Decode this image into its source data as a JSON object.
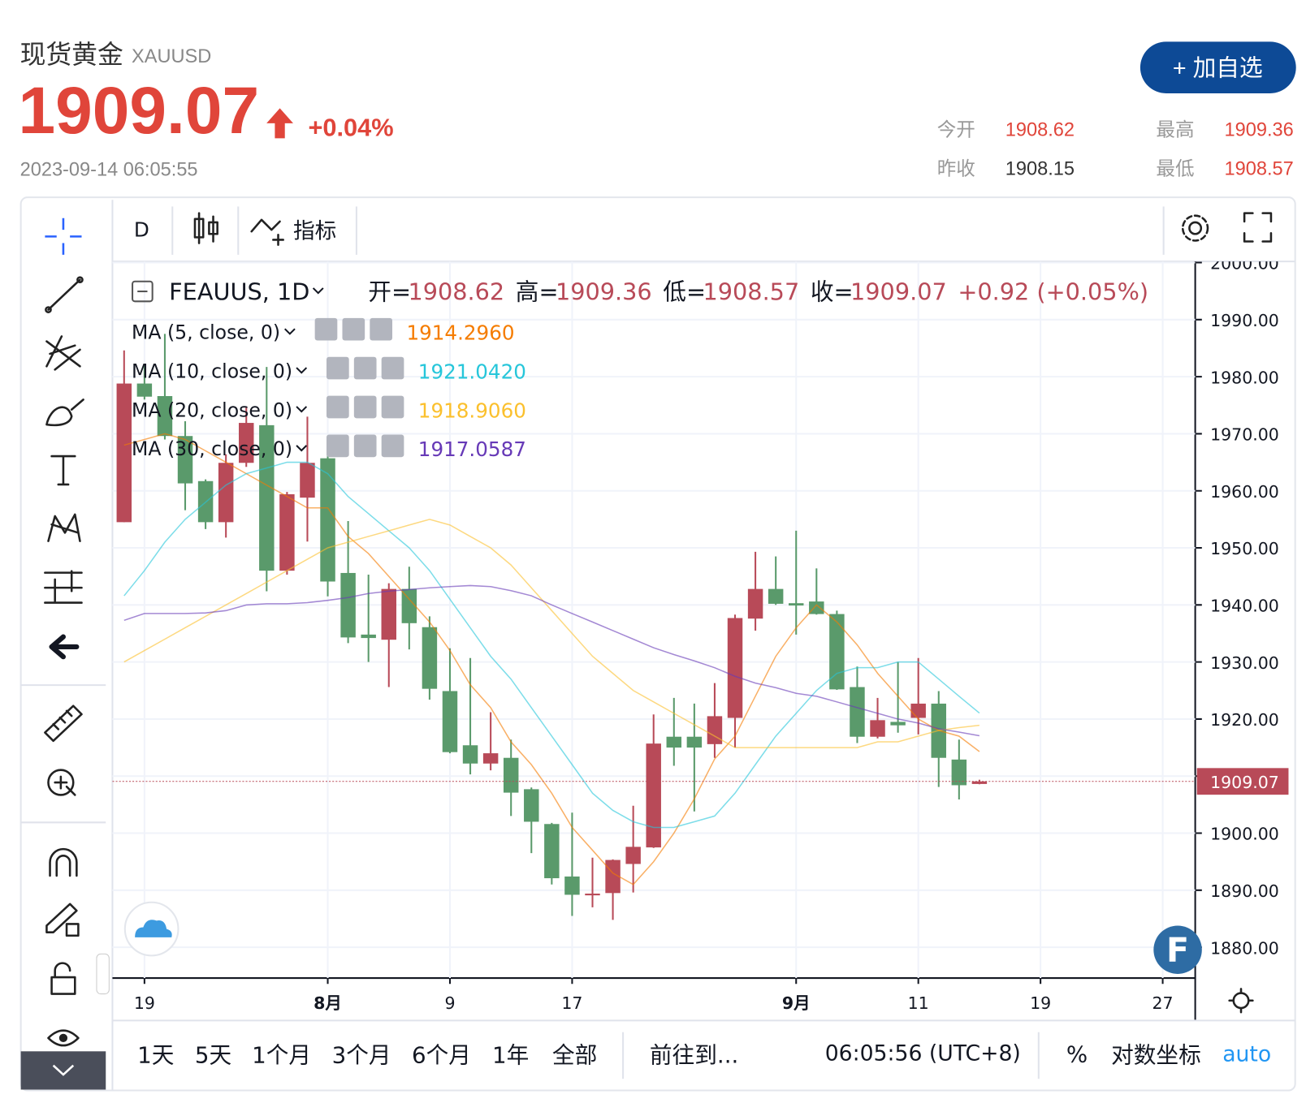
{
  "header": {
    "name": "现货黄金",
    "symbol": "XAUUSD",
    "price": 1909.07,
    "change": "+0.04%",
    "timestamp": "2023-09-14 06:05:55",
    "button": "+ 加自选",
    "stats": [
      {
        "label": "今开",
        "value": 1908.62
      },
      {
        "label": "最高",
        "value": 1909.36
      },
      {
        "label": "昨收",
        "value": 1908.15
      },
      {
        "label": "最低",
        "value": 1908.57
      }
    ]
  },
  "toolbar": {
    "interval": "D",
    "indicators": "指标"
  },
  "chart_data": {
    "type": "candlestick",
    "symbol_label": "FEAUUS, 1D",
    "legend_labels": {
      "open": "开=",
      "high": "高=",
      "low": "低=",
      "close": "收="
    },
    "change_label": "+0.92 (+0.05%)",
    "up_color": "#b84a58",
    "down_color": "#5a9a6b",
    "watermark_logo": "F",
    "categories": [
      null,
      "19",
      null,
      null,
      null,
      null,
      null,
      null,
      null,
      null,
      "8月",
      null,
      null,
      null,
      null,
      null,
      "9",
      null,
      null,
      null,
      null,
      null,
      "17",
      null,
      null,
      null,
      null,
      null,
      null,
      null,
      null,
      null,
      null,
      "9月",
      null,
      null,
      null,
      null,
      null,
      "11",
      null,
      null,
      null,
      null,
      null,
      "19",
      null,
      null,
      null,
      null,
      null,
      "27"
    ],
    "open": [
      1954.5,
      1978.8,
      1976.6,
      1969.6,
      1961.7,
      1954.5,
      1964.9,
      1971.5,
      1946.0,
      1958.8,
      1965.7,
      1945.6,
      1934.8,
      1933.9,
      1942.8,
      1936.1,
      1924.9,
      1915.4,
      1912.2,
      1913.2,
      1907.7,
      1901.6,
      1892.4,
      1889.1,
      1889.5,
      1894.6,
      1897.5,
      1916.9,
      1916.9,
      1915.6,
      1920.2,
      1937.6,
      1942.8,
      1940.3,
      1940.6,
      1938.4,
      1925.6,
      1916.9,
      1919.5,
      1920.2,
      1922.7,
      1912.9,
      1908.62,
      null,
      null,
      null,
      null,
      null,
      null,
      null,
      null,
      null
    ],
    "high": [
      1984.6,
      1982.0,
      1987.5,
      1972.2,
      1962.0,
      1966.4,
      1974.8,
      1981.7,
      1959.8,
      1973.0,
      1966.4,
      1954.7,
      1945.3,
      1943.8,
      1946.7,
      1938.0,
      1932.4,
      1930.7,
      1921.2,
      1916.4,
      1908.0,
      1901.8,
      1903.6,
      1895.7,
      1895.4,
      1904.8,
      1920.8,
      1923.7,
      1922.7,
      1926.3,
      1938.3,
      1949.3,
      1948.5,
      1953.0,
      1946.4,
      1939.0,
      1929.2,
      1923.7,
      1930.0,
      1930.7,
      1924.9,
      1916.4,
      1909.36,
      null,
      null,
      null,
      null,
      null,
      null,
      null,
      null,
      null
    ],
    "low": [
      1954.5,
      1976.0,
      1969.0,
      1956.6,
      1953.3,
      1951.8,
      1964.2,
      1942.4,
      1945.3,
      1951.1,
      1941.5,
      1933.3,
      1930.0,
      1925.6,
      1932.2,
      1923.4,
      1914.0,
      1910.3,
      1911.0,
      1903.0,
      1896.5,
      1891.0,
      1885.5,
      1887.0,
      1884.8,
      1889.6,
      1897.4,
      1911.8,
      1903.8,
      1913.2,
      1915.0,
      1935.5,
      1940.0,
      1934.8,
      1938.3,
      1925.1,
      1915.8,
      1916.6,
      1917.6,
      1917.3,
      1908.1,
      1905.9,
      1908.57,
      null,
      null,
      null,
      null,
      null,
      null,
      null,
      null,
      null
    ],
    "close": [
      1978.8,
      1976.5,
      1969.6,
      1961.3,
      1954.5,
      1964.9,
      1971.9,
      1946.0,
      1959.4,
      1964.9,
      1944.1,
      1934.3,
      1934.2,
      1942.8,
      1936.8,
      1925.3,
      1914.2,
      1912.2,
      1914.0,
      1907.1,
      1902.0,
      1892.1,
      1889.2,
      1889.4,
      1895.3,
      1897.6,
      1915.7,
      1915.0,
      1915.0,
      1920.5,
      1937.7,
      1942.8,
      1940.2,
      1939.9,
      1938.4,
      1925.2,
      1916.9,
      1919.8,
      1918.9,
      1922.7,
      1913.2,
      1908.4,
      1909.07,
      null,
      null,
      null,
      null,
      null,
      null,
      null,
      null,
      null
    ],
    "series": [
      {
        "name": "MA (5, close, 0)",
        "color": "#f57c00",
        "legend_value": "1914.2960",
        "values": [
          1968,
          1969,
          1970,
          1969,
          1967,
          1965,
          1963,
          1961,
          1959,
          1957,
          1957,
          1952,
          1949,
          1945,
          1941,
          1937,
          1932,
          1926,
          1922,
          1916,
          1912,
          1907,
          1901,
          1897,
          1893,
          1891,
          1895,
          1900,
          1906,
          1913,
          1917,
          1924,
          1931,
          1936,
          1940,
          1937,
          1933,
          1928,
          1924,
          1920,
          1918,
          1917,
          1914.296,
          null,
          null,
          null,
          null,
          null,
          null,
          null,
          null,
          null
        ]
      },
      {
        "name": "MA (10, close, 0)",
        "color": "#26c6da",
        "legend_value": "1921.0420",
        "values": [
          1941.6,
          1946,
          1951,
          1955,
          1958,
          1961,
          1963,
          1964,
          1965,
          1965,
          1963,
          1959,
          1956,
          1953,
          1950,
          1946,
          1941,
          1936,
          1931,
          1927,
          1922,
          1917,
          1912,
          1907,
          1904,
          1902,
          1901,
          1901,
          1902,
          1903,
          1907,
          1912,
          1917,
          1921,
          1925,
          1928,
          1929,
          1929,
          1930,
          1930,
          1927,
          1924,
          1921.042,
          null,
          null,
          null,
          null,
          null,
          null,
          null,
          null,
          null
        ]
      },
      {
        "name": "MA (20, close, 0)",
        "color": "#fbc02d",
        "legend_value": "1918.9060",
        "values": [
          1930,
          1932,
          1934,
          1936,
          1938,
          1940,
          1942,
          1944,
          1946,
          1948,
          1950,
          1951,
          1952,
          1953,
          1954,
          1955,
          1954,
          1952,
          1950,
          1947,
          1943,
          1939,
          1935,
          1931,
          1928,
          1925,
          1923,
          1921,
          1919,
          1917,
          1915,
          1915,
          1915,
          1915,
          1915,
          1915,
          1915,
          1916,
          1916,
          1917,
          1918,
          1918.5,
          1918.906,
          null,
          null,
          null,
          null,
          null,
          null,
          null,
          null,
          null
        ]
      },
      {
        "name": "MA (30, close, 0)",
        "color": "#673ab7",
        "legend_value": "1917.0587",
        "values": [
          1937.3,
          1938.5,
          1938.5,
          1938.5,
          1938.6,
          1939,
          1940,
          1940.2,
          1940.2,
          1940.4,
          1940.8,
          1941.3,
          1942,
          1942.4,
          1942.7,
          1943,
          1943.2,
          1943.4,
          1943.2,
          1942.5,
          1941.6,
          1940,
          1938.5,
          1937,
          1935.5,
          1934,
          1932.5,
          1931.3,
          1930.2,
          1929,
          1927.5,
          1926.3,
          1925.5,
          1924.5,
          1924,
          1923,
          1922,
          1921,
          1920,
          1919.3,
          1918.3,
          1917.7,
          1917.0587,
          null,
          null,
          null,
          null,
          null,
          null,
          null,
          null,
          null
        ]
      }
    ],
    "ylim": [
      1874.6,
      2000.2
    ],
    "yticks": [
      {
        "value": 1880,
        "label": "1880.00"
      },
      {
        "value": 1890,
        "label": "1890.00"
      },
      {
        "value": 1900,
        "label": "1900.00"
      },
      {
        "value": 1910,
        "label": "1910.00"
      },
      {
        "value": 1920,
        "label": "1920.00"
      },
      {
        "value": 1930,
        "label": "1930.00"
      },
      {
        "value": 1940,
        "label": "1940.00"
      },
      {
        "value": 1950,
        "label": "1950.00"
      },
      {
        "value": 1960,
        "label": "1960.00"
      },
      {
        "value": 1970,
        "label": "1970.00"
      },
      {
        "value": 1980,
        "label": "1980.00"
      },
      {
        "value": 1990,
        "label": "1990.00"
      },
      {
        "value": 2000,
        "label": "2000.00"
      }
    ],
    "grid": true
  },
  "range_bar": {
    "buttons": [
      "1天",
      "5天",
      "1个月",
      "3个月",
      "6个月",
      "1年",
      "全部"
    ],
    "goto": "前往到...",
    "time": "06:05:56 (UTC+8)",
    "percent": "%",
    "log": "对数坐标",
    "auto": "auto"
  }
}
